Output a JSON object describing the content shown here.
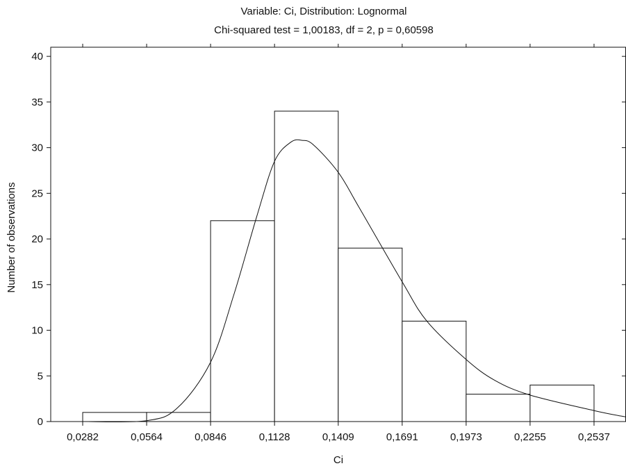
{
  "chart_data": {
    "type": "bar",
    "title": "Variable:  Ci, Distribution: Lognormal",
    "subtitle": "Chi-squared test = 1,00183, df = 2, p = 0,60598",
    "xlabel": "Ci",
    "ylabel": "Number of observations",
    "x_ticks": [
      0.0282,
      0.0564,
      0.0846,
      0.1128,
      0.1409,
      0.1691,
      0.1973,
      0.2255,
      0.2537
    ],
    "x_tick_labels": [
      "0,0282",
      "0,0564",
      "0,0846",
      "0,1128",
      "0,1409",
      "0,1691",
      "0,1973",
      "0,2255",
      "0,2537"
    ],
    "xlim": [
      0.0141,
      0.2678
    ],
    "ylim": [
      0,
      41
    ],
    "y_ticks": [
      0,
      5,
      10,
      15,
      20,
      25,
      30,
      35,
      40
    ],
    "y_tick_labels": [
      "0",
      "5",
      "10",
      "15",
      "20",
      "25",
      "30",
      "35",
      "40"
    ],
    "bins": [
      {
        "x0": 0.0282,
        "x1": 0.0564,
        "count": 1
      },
      {
        "x0": 0.0564,
        "x1": 0.0846,
        "count": 1
      },
      {
        "x0": 0.0846,
        "x1": 0.1128,
        "count": 22
      },
      {
        "x0": 0.1128,
        "x1": 0.1409,
        "count": 34
      },
      {
        "x0": 0.1409,
        "x1": 0.1691,
        "count": 19
      },
      {
        "x0": 0.1691,
        "x1": 0.1973,
        "count": 11
      },
      {
        "x0": 0.1973,
        "x1": 0.2255,
        "count": 3
      },
      {
        "x0": 0.2255,
        "x1": 0.2537,
        "count": 4
      }
    ],
    "fit_curve": {
      "distribution": "Lognormal",
      "x": [
        0.0282,
        0.0564,
        0.07,
        0.0846,
        0.095,
        0.105,
        0.1128,
        0.12,
        0.125,
        0.13,
        0.1409,
        0.15,
        0.1691,
        0.18,
        0.1973,
        0.21,
        0.2255,
        0.2537,
        0.2678
      ],
      "y": [
        0,
        0.1,
        1.5,
        6.5,
        14,
        22.5,
        28.5,
        30.6,
        30.8,
        30.3,
        27.3,
        23.5,
        15.3,
        11,
        6.8,
        4.5,
        2.9,
        1.2,
        0.5
      ]
    },
    "grid": false,
    "legend": "none"
  }
}
